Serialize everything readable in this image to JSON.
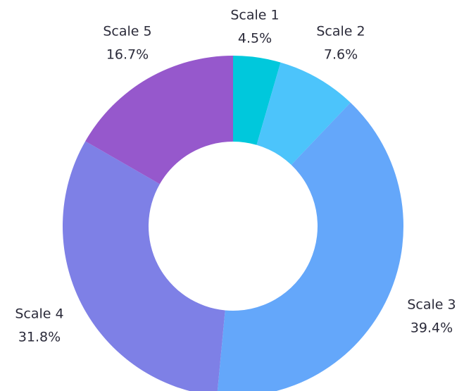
{
  "chart_data": {
    "type": "pie",
    "donut": true,
    "categories": [
      "Scale 1",
      "Scale 2",
      "Scale 3",
      "Scale 4",
      "Scale 5"
    ],
    "values": [
      4.5,
      7.6,
      39.4,
      31.8,
      16.7
    ],
    "value_labels": [
      "4.5%",
      "7.6%",
      "39.4%",
      "31.8%",
      "16.7%"
    ],
    "colors": [
      "#00c8dc",
      "#4cc4fb",
      "#64a7fa",
      "#7e80e6",
      "#9658cc"
    ]
  }
}
